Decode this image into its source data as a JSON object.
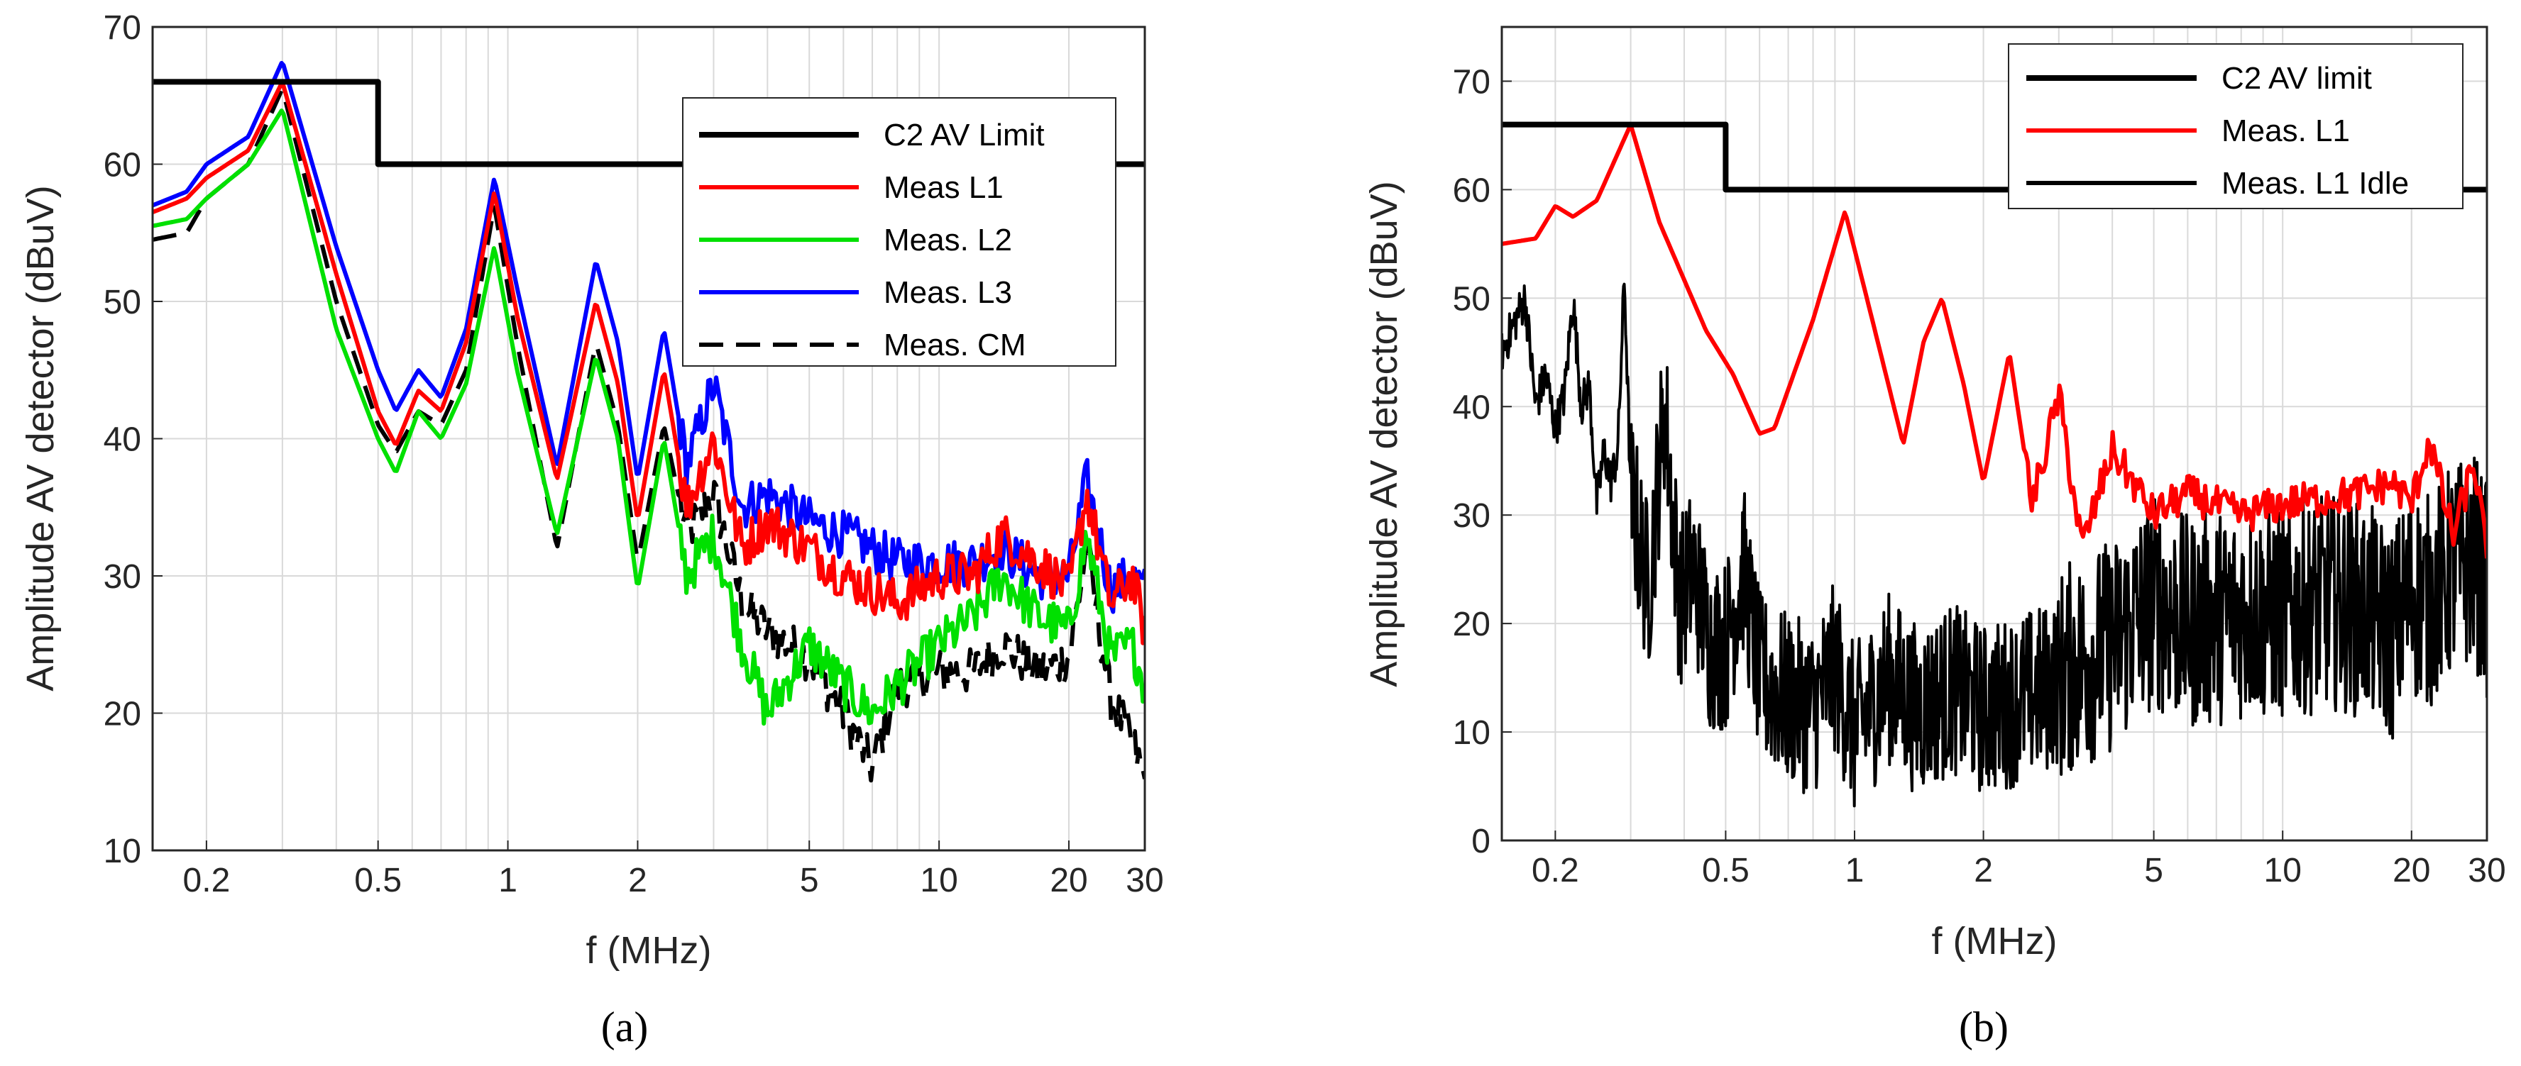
{
  "chart_data": [
    {
      "type": "line",
      "panel_caption": "(a)",
      "xlabel": "f (MHz)",
      "ylabel": "Amplitude AV detector (dBuV)",
      "xscale": "log",
      "xlim": [
        0.15,
        30
      ],
      "ylim": [
        10,
        70
      ],
      "xticks": [
        0.2,
        0.5,
        1,
        2,
        5,
        10,
        20,
        30
      ],
      "xtick_labels": [
        "0.2",
        "0.5",
        "1",
        "2",
        "5",
        "10",
        "20",
        "30"
      ],
      "yticks": [
        10,
        20,
        30,
        40,
        50,
        60,
        70
      ],
      "ytick_labels": [
        "10",
        "20",
        "30",
        "40",
        "50",
        "60",
        "70"
      ],
      "grid": true,
      "legend_position": "top-right",
      "series": [
        {
          "name": "C2 AV Limit",
          "color": "#000000",
          "dash": "solid",
          "step": true,
          "x": [
            0.15,
            0.5,
            0.5,
            30
          ],
          "y": [
            66,
            66,
            60,
            60
          ]
        },
        {
          "name": "Meas L1",
          "color": "#ff0000",
          "dash": "solid",
          "x": [
            0.15,
            0.18,
            0.2,
            0.25,
            0.3,
            0.4,
            0.5,
            0.55,
            0.62,
            0.7,
            0.8,
            0.93,
            1.05,
            1.3,
            1.6,
            1.8,
            2.0,
            2.3,
            2.6,
            3.0,
            3.5,
            4,
            5,
            6,
            7,
            8,
            10,
            12,
            14,
            17,
            20,
            22,
            25,
            28,
            30
          ],
          "y": [
            56.5,
            57.5,
            59,
            61,
            66,
            52,
            42,
            39.5,
            43.5,
            42,
            47,
            58,
            49,
            37,
            50,
            44,
            34,
            45,
            35,
            40,
            32,
            34,
            32,
            30,
            29,
            28,
            30,
            30,
            33,
            31,
            29,
            36,
            28,
            30,
            26
          ]
        },
        {
          "name": "Meas. L2",
          "color": "#00e000",
          "dash": "solid",
          "x": [
            0.15,
            0.18,
            0.2,
            0.25,
            0.3,
            0.4,
            0.5,
            0.55,
            0.62,
            0.7,
            0.8,
            0.93,
            1.05,
            1.3,
            1.6,
            1.8,
            2.0,
            2.3,
            2.6,
            3.0,
            3.5,
            4,
            5,
            6,
            7,
            8,
            10,
            12,
            14,
            17,
            20,
            22,
            25,
            28,
            30
          ],
          "y": [
            55.5,
            56,
            57.5,
            60,
            64,
            48,
            40,
            37.5,
            42,
            40,
            44,
            54,
            45,
            33,
            46,
            40,
            29,
            40,
            30,
            33,
            25,
            20,
            25,
            22,
            20,
            22,
            25,
            27,
            30,
            27,
            26,
            33,
            24,
            25,
            22
          ]
        },
        {
          "name": "Meas. L3",
          "color": "#0000ff",
          "dash": "solid",
          "x": [
            0.15,
            0.18,
            0.2,
            0.25,
            0.3,
            0.4,
            0.5,
            0.55,
            0.62,
            0.7,
            0.8,
            0.93,
            1.05,
            1.3,
            1.6,
            1.8,
            2.0,
            2.3,
            2.6,
            3.0,
            3.5,
            4,
            5,
            6,
            7,
            8,
            10,
            12,
            14,
            17,
            20,
            22,
            25,
            28,
            30
          ],
          "y": [
            57,
            58,
            60,
            62,
            67.5,
            54,
            45,
            42,
            45,
            43,
            48,
            59,
            51,
            38,
            53,
            47,
            37,
            48,
            38,
            44,
            35,
            36,
            34,
            33,
            32,
            31,
            31,
            31,
            32,
            30,
            30,
            37,
            29,
            30,
            29
          ]
        },
        {
          "name": "Meas. CM",
          "color": "#000000",
          "dash": "dashed",
          "x": [
            0.15,
            0.18,
            0.2,
            0.25,
            0.3,
            0.4,
            0.5,
            0.55,
            0.62,
            0.7,
            0.8,
            0.93,
            1.05,
            1.3,
            1.6,
            1.8,
            2.0,
            2.3,
            2.6,
            3.0,
            3.5,
            4,
            5,
            6,
            7,
            8,
            10,
            12,
            14,
            17,
            20,
            22,
            25,
            28,
            30
          ],
          "y": [
            54.5,
            55,
            57.5,
            60,
            65.5,
            50,
            41,
            39,
            42,
            41,
            45,
            57,
            47,
            32,
            47,
            41,
            31,
            41,
            33,
            36,
            28,
            26,
            24,
            20,
            16,
            22,
            23,
            23,
            25,
            23,
            24,
            32,
            21,
            18,
            15
          ]
        }
      ]
    },
    {
      "type": "line",
      "panel_caption": "(b)",
      "xlabel": "f (MHz)",
      "ylabel": "Amplitude AV detector (dBuV)",
      "xscale": "log",
      "xlim": [
        0.15,
        30
      ],
      "ylim": [
        0,
        75
      ],
      "xticks": [
        0.2,
        0.5,
        1,
        2,
        5,
        10,
        20,
        30
      ],
      "xtick_labels": [
        "0.2",
        "0.5",
        "1",
        "2",
        "5",
        "10",
        "20",
        "30"
      ],
      "yticks": [
        0,
        10,
        20,
        30,
        40,
        50,
        60,
        70
      ],
      "ytick_labels": [
        "0",
        "10",
        "20",
        "30",
        "40",
        "50",
        "60",
        "70"
      ],
      "grid": true,
      "legend_position": "top-right",
      "series": [
        {
          "name": "C2 AV limit",
          "color": "#000000",
          "dash": "solid",
          "step": true,
          "x": [
            0.15,
            0.5,
            0.5,
            30
          ],
          "y": [
            66,
            66,
            60,
            60
          ]
        },
        {
          "name": "Meas. L1",
          "color": "#ff0000",
          "dash": "solid",
          "x": [
            0.15,
            0.18,
            0.2,
            0.22,
            0.25,
            0.3,
            0.35,
            0.45,
            0.52,
            0.6,
            0.65,
            0.8,
            0.95,
            1.1,
            1.3,
            1.45,
            1.6,
            1.8,
            2.0,
            2.3,
            2.6,
            3.0,
            3.4,
            4,
            5,
            6,
            8,
            10,
            15,
            18,
            20,
            22,
            25,
            28,
            30
          ],
          "y": [
            55,
            55.5,
            58.5,
            57.5,
            59,
            66,
            57,
            47,
            43,
            37.5,
            38,
            48,
            58,
            48,
            36.5,
            46,
            50,
            42,
            33,
            45,
            31,
            41,
            27,
            36,
            30,
            32,
            30,
            31,
            32,
            33,
            31,
            37,
            28,
            35,
            26
          ]
        },
        {
          "name": "Meas. L1 Idle",
          "color": "#000000",
          "dash": "solid",
          "noisy": true,
          "x": [
            0.15,
            0.17,
            0.18,
            0.19,
            0.2,
            0.21,
            0.22,
            0.23,
            0.24,
            0.25,
            0.26,
            0.27,
            0.28,
            0.29,
            0.3,
            0.33,
            0.36,
            0.39,
            0.42,
            0.46,
            0.5,
            0.55,
            0.6,
            0.7,
            0.8,
            0.9,
            1,
            1.2,
            1.4,
            1.7,
            2,
            2.4,
            2.8,
            3.2,
            4,
            5,
            6,
            8,
            10,
            13,
            16,
            18,
            20,
            22,
            25,
            28,
            30
          ],
          "y": [
            45,
            50,
            40,
            43,
            38,
            41,
            50,
            40,
            42,
            31,
            36,
            33,
            36,
            52,
            32,
            23,
            40,
            22,
            25,
            18,
            18,
            25,
            15,
            13,
            12,
            16,
            10,
            15,
            12,
            14,
            12,
            13,
            14,
            16,
            18,
            22,
            20,
            21,
            21,
            22,
            21,
            19,
            23,
            22,
            25,
            26,
            23
          ]
        }
      ]
    }
  ],
  "figure_captions": {
    "a": "(a)",
    "b": "(b)"
  }
}
